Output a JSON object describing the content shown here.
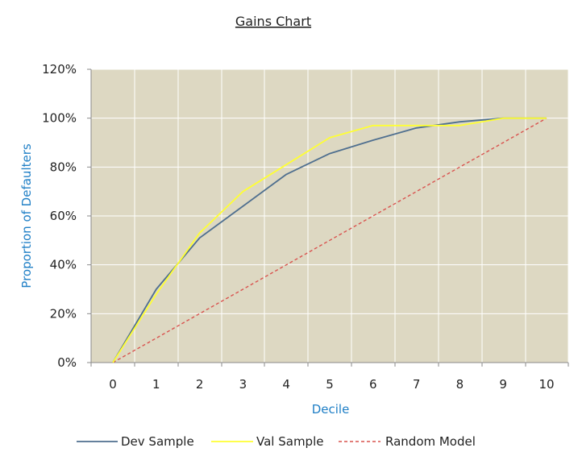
{
  "colors": {
    "plot_background": "#ddd8c2",
    "grid": "#ffffff",
    "axis_title": "#1f7fc6",
    "dev": "#4f6f8f",
    "val": "#ffff33",
    "random": "#d9534f",
    "text": "#222222"
  },
  "chart_data": {
    "type": "line",
    "title": "Gains Chart",
    "xlabel": "Decile",
    "ylabel": "Proportion of Defaulters",
    "x": [
      0,
      1,
      2,
      3,
      4,
      5,
      6,
      7,
      8,
      9,
      10
    ],
    "x_tick_labels": [
      "0",
      "1",
      "2",
      "3",
      "4",
      "5",
      "6",
      "7",
      "8",
      "9",
      "10"
    ],
    "xlim": [
      0,
      10
    ],
    "ylim": [
      0,
      1.2
    ],
    "y_ticks": [
      0,
      0.2,
      0.4,
      0.6,
      0.8,
      1.0,
      1.2
    ],
    "y_tick_labels": [
      "0%",
      "20%",
      "40%",
      "60%",
      "80%",
      "100%",
      "120%"
    ],
    "grid": true,
    "legend_position": "bottom",
    "series": [
      {
        "name": "Dev Sample",
        "style": "solid",
        "color": "#4f6f8f",
        "values": [
          0,
          0.3,
          0.51,
          0.64,
          0.77,
          0.855,
          0.91,
          0.96,
          0.985,
          1.0,
          1.0
        ]
      },
      {
        "name": "Val Sample",
        "style": "solid",
        "color": "#ffff33",
        "values": [
          0,
          0.28,
          0.53,
          0.7,
          0.81,
          0.92,
          0.97,
          0.97,
          0.97,
          1.0,
          1.0
        ]
      },
      {
        "name": "Random Model",
        "style": "dashed",
        "color": "#d9534f",
        "values": [
          0,
          0.1,
          0.2,
          0.3,
          0.4,
          0.5,
          0.6,
          0.7,
          0.8,
          0.9,
          1.0
        ]
      }
    ]
  }
}
